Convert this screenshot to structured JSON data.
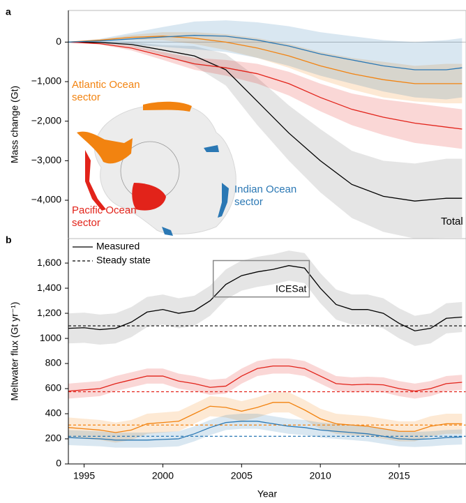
{
  "chart_data": [
    {
      "type": "line",
      "label": "a",
      "y_label": "Mass change (Gt)",
      "xlim": [
        1994,
        2019.25
      ],
      "ylim": [
        -4970,
        800
      ],
      "yticks": [
        0,
        {
          "value": -1000,
          "label": "−1,000"
        },
        {
          "value": -2000,
          "label": "−2,000"
        },
        {
          "value": -3000,
          "label": "−3,000"
        },
        {
          "value": -4000,
          "label": "−4,000"
        }
      ],
      "zero_line": true,
      "x": [
        1994,
        1996,
        1998,
        2000,
        2002,
        2004,
        2006,
        2008,
        2010,
        2012,
        2014,
        2016,
        2018,
        2019
      ],
      "series": [
        {
          "name": "Total",
          "color": "#000000",
          "values": [
            0,
            -10,
            -60,
            -200,
            -350,
            -700,
            -1500,
            -2300,
            -3000,
            -3600,
            -3900,
            -4020,
            -3950,
            -3950
          ],
          "error": [
            0,
            20,
            60,
            120,
            250,
            400,
            600,
            700,
            800,
            850,
            900,
            950,
            1000,
            1000
          ]
        },
        {
          "name": "Pacific Ocean sector",
          "color": "#e2231a",
          "values": [
            0,
            -40,
            -150,
            -350,
            -550,
            -650,
            -800,
            -1050,
            -1400,
            -1700,
            -1900,
            -2050,
            -2150,
            -2200
          ],
          "error": [
            0,
            20,
            60,
            100,
            150,
            200,
            250,
            300,
            350,
            400,
            450,
            500,
            500,
            500
          ]
        },
        {
          "name": "Atlantic Ocean sector",
          "color": "#f28310",
          "values": [
            0,
            50,
            120,
            150,
            100,
            0,
            -150,
            -350,
            -600,
            -800,
            -950,
            -1050,
            -1050,
            -1050
          ],
          "error": [
            0,
            20,
            60,
            100,
            150,
            200,
            250,
            300,
            350,
            400,
            450,
            450,
            500,
            500
          ]
        },
        {
          "name": "Indian Ocean sector",
          "color": "#2b78b4",
          "values": [
            0,
            30,
            80,
            130,
            170,
            150,
            50,
            -100,
            -300,
            -450,
            -600,
            -700,
            -700,
            -650
          ],
          "error": [
            0,
            50,
            150,
            250,
            350,
            400,
            450,
            500,
            550,
            600,
            650,
            700,
            750,
            750
          ]
        }
      ]
    },
    {
      "type": "line",
      "label": "b",
      "y_label": "Meltwater flux (Gt yr⁻¹)",
      "x_label": "Year",
      "xlim": [
        1994,
        2019.25
      ],
      "ylim": [
        0,
        1795
      ],
      "xticks": [
        1995,
        2000,
        2005,
        2010,
        2015
      ],
      "yticks": [
        0,
        200,
        400,
        600,
        800,
        1000,
        {
          "value": 1200,
          "label": "1,200"
        },
        {
          "value": 1400,
          "label": "1,400"
        },
        {
          "value": 1600,
          "label": "1,600"
        }
      ],
      "legend": [
        "Measured",
        "Steady state"
      ],
      "annotation": {
        "text": "ICESat",
        "x": [
          2003.2,
          2009.3
        ],
        "y": [
          1330,
          1620
        ]
      },
      "x": [
        1994,
        1995,
        1996,
        1997,
        1998,
        1999,
        2000,
        2001,
        2002,
        2003,
        2004,
        2005,
        2006,
        2007,
        2008,
        2009,
        2010,
        2011,
        2012,
        2013,
        2014,
        2015,
        2016,
        2017,
        2018,
        2019
      ],
      "series": [
        {
          "color": "#000000",
          "steady_state": 1100,
          "error": 120,
          "values": [
            1080,
            1085,
            1070,
            1080,
            1130,
            1210,
            1230,
            1200,
            1220,
            1300,
            1430,
            1500,
            1530,
            1550,
            1580,
            1560,
            1400,
            1270,
            1230,
            1230,
            1200,
            1120,
            1060,
            1080,
            1160,
            1170
          ]
        },
        {
          "color": "#e2231a",
          "steady_state": 575,
          "error": 60,
          "values": [
            580,
            590,
            600,
            640,
            670,
            700,
            700,
            660,
            640,
            610,
            620,
            700,
            760,
            780,
            780,
            760,
            700,
            640,
            630,
            635,
            630,
            600,
            580,
            600,
            640,
            650
          ]
        },
        {
          "color": "#f28310",
          "steady_state": 310,
          "error": 80,
          "values": [
            290,
            280,
            270,
            250,
            270,
            320,
            330,
            340,
            400,
            460,
            450,
            420,
            450,
            490,
            490,
            430,
            360,
            320,
            310,
            300,
            280,
            260,
            260,
            300,
            320,
            320
          ]
        },
        {
          "color": "#2b78b4",
          "steady_state": 220,
          "error": 60,
          "values": [
            210,
            205,
            200,
            190,
            190,
            190,
            195,
            200,
            240,
            290,
            330,
            340,
            340,
            320,
            300,
            290,
            270,
            260,
            250,
            240,
            220,
            200,
            195,
            200,
            210,
            215
          ]
        }
      ]
    }
  ]
}
